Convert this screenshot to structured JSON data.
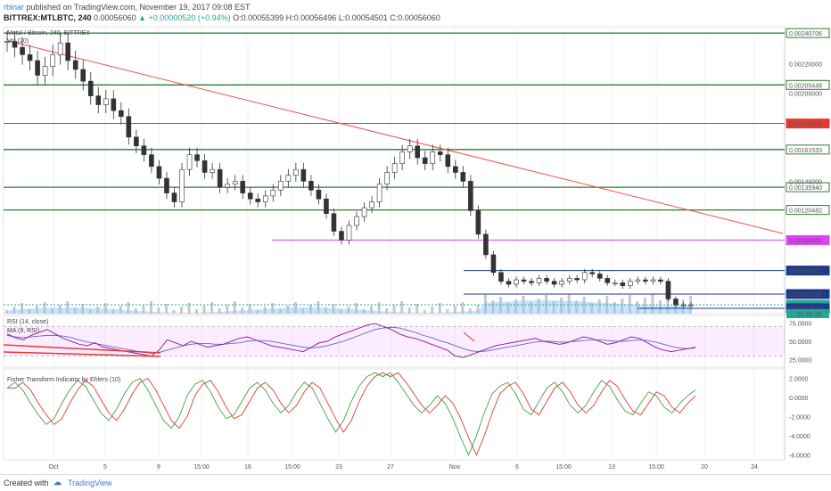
{
  "header": {
    "author": "rbinar",
    "published": "published on TradingView.com, November 19, 2017 09:08 EST",
    "symbol": "BITTREX:MTLBTC, 240",
    "last": "0.00056060",
    "change": "▲ +0.00000520 (+0.94%)",
    "ohlc": "O:0.00055399 H:0.00056496 L:0.00054501 C:0.00056060"
  },
  "footer": {
    "created_with": "Created with",
    "brand": "TradingView"
  },
  "chart_data": [
    {
      "type": "candlestick",
      "title": "Metal / Bitcoin, 240, BITTREX",
      "subtitle": "Vol (20)",
      "y_axis_ticks": [
        "0.00220000",
        "0.00200000",
        "0.00140000"
      ],
      "ylim": [
        0.0005,
        0.00245
      ],
      "x_ticks": [
        "Oct",
        "5",
        "9",
        "15:00",
        "16",
        "15:00",
        "23",
        "27",
        "Nov",
        "6",
        "15:00",
        "13",
        "15:00",
        "20",
        "24"
      ],
      "horizontal_levels": [
        {
          "value": 0.00240706,
          "label": "0.00240706",
          "color": "#2e7d32"
        },
        {
          "value": 0.00205448,
          "label": "0.00205448",
          "color": "#2e7d32"
        },
        {
          "value": 0.00179256,
          "label": "0.00179256",
          "color": "#e53935"
        },
        {
          "value": 0.00161533,
          "label": "0.00161533",
          "color": "#2e7d32"
        },
        {
          "value": 0.0013594,
          "label": "0.00135940",
          "color": "#2e7d32"
        },
        {
          "value": 0.00120482,
          "label": "0.00120482",
          "color": "#2e7d32"
        },
        {
          "value": 0.001,
          "label": "0.00100000",
          "color": "#e040fb"
        },
        {
          "value": 0.00079302,
          "label": "0.00079302",
          "color": "#1e3a8a"
        },
        {
          "value": 0.00063336,
          "label": "0.00063336",
          "color": "#1e3a8a"
        },
        {
          "value": 0.0005606,
          "label": "0.00056060",
          "color": "#26a69a"
        },
        {
          "value": 0.0005362,
          "label": "0.00053620",
          "color": "#1e3a8a"
        }
      ],
      "countdown": "01:51:25",
      "price_path": [
        0.00235,
        0.00231,
        0.00226,
        0.00222,
        0.00212,
        0.00218,
        0.00226,
        0.00234,
        0.00222,
        0.00216,
        0.00208,
        0.00198,
        0.00192,
        0.00196,
        0.00188,
        0.00184,
        0.0017,
        0.00164,
        0.00158,
        0.0015,
        0.00142,
        0.00132,
        0.00126,
        0.00148,
        0.00158,
        0.00154,
        0.00146,
        0.00148,
        0.00136,
        0.00138,
        0.0014,
        0.00132,
        0.00128,
        0.00126,
        0.0013,
        0.00134,
        0.0014,
        0.00144,
        0.00148,
        0.0014,
        0.00134,
        0.00128,
        0.00118,
        0.00106,
        0.001,
        0.0011,
        0.00116,
        0.00122,
        0.00126,
        0.00138,
        0.00146,
        0.00152,
        0.0016,
        0.00164,
        0.00156,
        0.00152,
        0.0016,
        0.00158,
        0.0015,
        0.00146,
        0.0014,
        0.0012,
        0.00104,
        0.0009,
        0.00078,
        0.00072,
        0.0007,
        0.00073,
        0.00072,
        0.00071,
        0.00074,
        0.00072,
        0.0007,
        0.00072,
        0.00074,
        0.00073,
        0.00078,
        0.00077,
        0.00074,
        0.00071,
        0.00071,
        0.00069,
        0.00072,
        0.00073,
        0.00072,
        0.00073,
        0.00072,
        0.0006,
        0.00056,
        0.00056,
        0.00056
      ]
    },
    {
      "type": "line",
      "title": "RSI (14, close)",
      "subtitle": "MA (9, RSI)",
      "y_axis_ticks": [
        "75.0000",
        "50.0000",
        "25.0000"
      ],
      "ylim": [
        15,
        85
      ],
      "rsi": [
        60,
        55,
        52,
        58,
        62,
        66,
        60,
        54,
        50,
        46,
        44,
        48,
        42,
        40,
        38,
        36,
        34,
        32,
        30,
        38,
        52,
        48,
        44,
        50,
        46,
        42,
        44,
        46,
        50,
        54,
        56,
        52,
        48,
        44,
        42,
        40,
        38,
        36,
        42,
        48,
        50,
        56,
        60,
        64,
        68,
        72,
        74,
        70,
        66,
        60,
        56,
        54,
        50,
        46,
        42,
        38,
        30,
        28,
        32,
        36,
        40,
        44,
        46,
        48,
        50,
        52,
        54,
        50,
        48,
        46,
        48,
        52,
        56,
        54,
        50,
        46,
        48,
        52,
        56,
        54,
        48,
        42,
        38,
        36,
        38,
        40,
        42
      ],
      "ma": [
        58,
        56,
        55,
        56,
        57,
        58,
        58,
        57,
        55,
        52,
        49,
        47,
        45,
        43,
        41,
        39,
        37,
        35,
        34,
        35,
        38,
        41,
        44,
        46,
        47,
        47,
        46,
        46,
        47,
        48,
        50,
        51,
        51,
        50,
        48,
        46,
        44,
        42,
        41,
        42,
        44,
        47,
        50,
        54,
        58,
        62,
        66,
        68,
        69,
        68,
        65,
        62,
        58,
        55,
        51,
        48,
        44,
        40,
        37,
        36,
        37,
        39,
        41,
        43,
        45,
        47,
        49,
        50,
        50,
        49,
        49,
        50,
        51,
        52,
        52,
        51,
        50,
        50,
        51,
        52,
        51,
        49,
        46,
        43,
        41,
        40,
        41
      ]
    },
    {
      "type": "line",
      "title": "Fisher Transform Indicator by Ehlers (10)",
      "y_axis_ticks": [
        "2.0000",
        "0.0000",
        "-2.0000",
        "-4.0000",
        "-6.0000"
      ],
      "ylim": [
        -6.5,
        3
      ],
      "fisher": [
        1.0,
        1.6,
        0.8,
        -0.6,
        -1.8,
        -2.8,
        -2.2,
        -0.6,
        0.8,
        1.8,
        1.2,
        -0.2,
        -1.6,
        -2.4,
        -1.2,
        0.4,
        1.6,
        2.0,
        0.8,
        -0.8,
        -2.4,
        -3.2,
        -2.0,
        0.2,
        1.4,
        1.8,
        0.6,
        -1.0,
        -2.2,
        -1.8,
        -0.4,
        1.0,
        1.6,
        0.8,
        -0.6,
        -1.6,
        -0.8,
        0.6,
        1.6,
        1.0,
        -0.6,
        -2.2,
        -3.6,
        -2.4,
        -0.4,
        1.2,
        2.2,
        2.6,
        2.2,
        2.6,
        1.6,
        0.4,
        -0.8,
        -1.6,
        -0.8,
        0.2,
        -0.6,
        -2.2,
        -4.2,
        -6.0,
        -4.0,
        -1.6,
        0.4,
        1.2,
        1.6,
        0.4,
        -1.2,
        -1.8,
        -0.4,
        1.0,
        1.6,
        0.6,
        -0.8,
        -1.6,
        -0.8,
        0.6,
        1.8,
        1.2,
        -0.2,
        -1.4,
        -1.8,
        -0.6,
        0.6,
        0.2,
        -1.0,
        -1.6,
        -0.6,
        0.2,
        0.8
      ]
    }
  ]
}
